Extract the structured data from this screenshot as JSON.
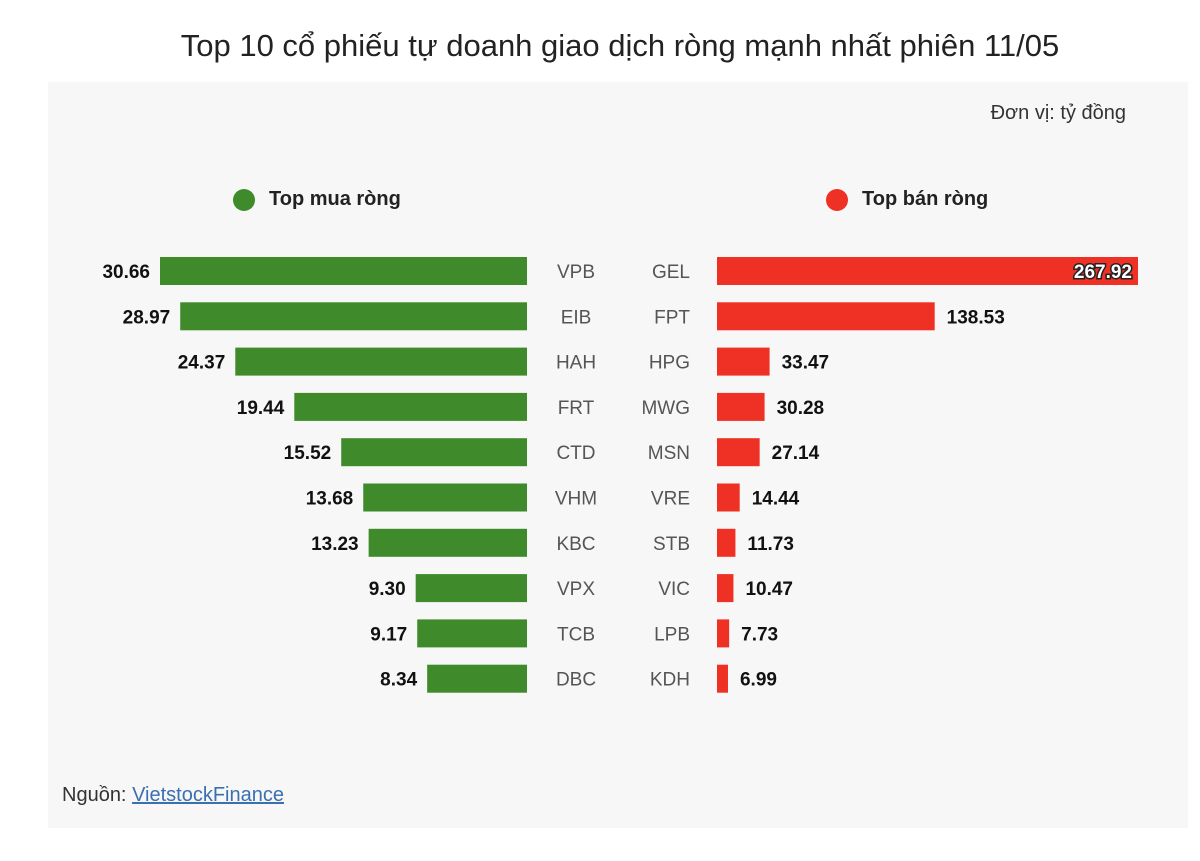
{
  "title": "Top 10 cổ phiếu tự doanh giao dịch ròng mạnh nhất phiên 11/05",
  "unit_label": "Đơn vị: tỷ đồng",
  "source": {
    "label": "Nguồn:",
    "link_text": "VietstockFinance"
  },
  "colors": {
    "buy": "#3f8a2a",
    "sell": "#ee3124",
    "background": "#f7f7f7"
  },
  "chart_data": [
    {
      "type": "bar",
      "orientation": "horizontal",
      "direction": "right-to-left",
      "legend": "Top mua ròng",
      "categories": [
        "VPB",
        "EIB",
        "HAH",
        "FRT",
        "CTD",
        "VHM",
        "KBC",
        "VPX",
        "TCB",
        "DBC"
      ],
      "values": [
        30.66,
        28.97,
        24.37,
        19.44,
        15.52,
        13.68,
        13.23,
        9.3,
        9.17,
        8.34
      ],
      "value_labels": [
        "30.66",
        "28.97",
        "24.37",
        "19.44",
        "15.52",
        "13.68",
        "13.23",
        "9.30",
        "9.17",
        "8.34"
      ],
      "xlim": [
        0,
        30.66
      ]
    },
    {
      "type": "bar",
      "orientation": "horizontal",
      "direction": "left-to-right",
      "legend": "Top bán ròng",
      "categories": [
        "GEL",
        "FPT",
        "HPG",
        "MWG",
        "MSN",
        "VRE",
        "STB",
        "VIC",
        "LPB",
        "KDH"
      ],
      "values": [
        267.92,
        138.53,
        33.47,
        30.28,
        27.14,
        14.44,
        11.73,
        10.47,
        7.73,
        6.99
      ],
      "value_labels": [
        "267.92",
        "138.53",
        "33.47",
        "30.28",
        "27.14",
        "14.44",
        "11.73",
        "10.47",
        "7.73",
        "6.99"
      ],
      "xlim": [
        0,
        267.92
      ]
    }
  ]
}
